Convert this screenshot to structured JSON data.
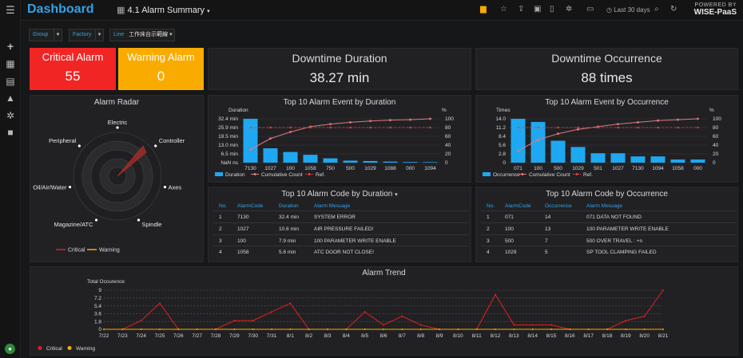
{
  "header": {
    "brand": "Dashboard",
    "dashboard_title": "4.1 Alarm Summary",
    "time_range": "Last 30 days",
    "powered_line1": "POWERED BY",
    "powered_line2": "WISE-PaaS"
  },
  "filters": [
    {
      "label": "Group"
    },
    {
      "label": "Factory"
    },
    {
      "label": "Line",
      "value": "工作床台示範線"
    }
  ],
  "stats": {
    "critical": {
      "label": "Critical Alarm",
      "value": "55",
      "color": "#f22525"
    },
    "warning": {
      "label": "Warning Alarm",
      "value": "0",
      "color": "#f9ab00"
    },
    "downtime_duration": {
      "label": "Downtime Duration",
      "value": "38.27 min"
    },
    "downtime_occurrence": {
      "label": "Downtime Occurrence",
      "value": "88 times"
    }
  },
  "radar": {
    "title": "Alarm Radar",
    "axes": [
      "Electric",
      "Controller",
      "Axes",
      "Spindle",
      "Magazine/ATC",
      "Oil/Air/Water",
      "Peripheral"
    ],
    "legend": [
      "Critical",
      "Warning"
    ]
  },
  "chart_data": [
    {
      "type": "bar",
      "title": "Top 10 Alarm Event by Duration",
      "ylabel": "Duration",
      "y2label": "%",
      "categories": [
        "7130",
        "1027",
        "100",
        "1058",
        "750",
        "500",
        "1029",
        "1088",
        "000",
        "1094"
      ],
      "y_ticks": [
        "NaN ns",
        "6.5 min",
        "13.0 min",
        "19.5 min",
        "25.9 min",
        "32.4 min"
      ],
      "y2_ticks": [
        "0",
        "20",
        "40",
        "60",
        "80",
        "100"
      ],
      "series": [
        {
          "name": "Duration",
          "values": [
            32.4,
            10.6,
            7.9,
            5.8,
            3.2,
            1.5,
            1.2,
            0.8,
            0.5,
            0.4
          ],
          "color": "#1ea8f2"
        },
        {
          "name": "Cumulative Count",
          "values": [
            30,
            55,
            70,
            82,
            88,
            92,
            95,
            97,
            98,
            100
          ],
          "color": "#e07b7b"
        },
        {
          "name": "Ref.",
          "values": [
            80,
            80,
            80,
            80,
            80,
            80,
            80,
            80,
            80,
            80
          ],
          "color": "#e04040"
        }
      ],
      "ylim": [
        0,
        32.4
      ]
    },
    {
      "type": "bar",
      "title": "Top 10 Alarm Event by Occurrence",
      "ylabel": "Times",
      "y2label": "%",
      "categories": [
        "071",
        "100",
        "500",
        "1029",
        "501",
        "1027",
        "7130",
        "1094",
        "1058",
        "000"
      ],
      "y_ticks": [
        "0",
        "2.8",
        "5.6",
        "8.4",
        "11.2",
        "14.0"
      ],
      "y2_ticks": [
        "0",
        "20",
        "40",
        "60",
        "80",
        "100"
      ],
      "series": [
        {
          "name": "Occurrence",
          "values": [
            14,
            13,
            7,
            5,
            3,
            3,
            2,
            2,
            1,
            1
          ],
          "color": "#1ea8f2"
        },
        {
          "name": "Cumulative Count",
          "values": [
            27,
            52,
            66,
            76,
            82,
            88,
            92,
            96,
            98,
            100
          ],
          "color": "#e07b7b"
        },
        {
          "name": "Ref.",
          "values": [
            80,
            80,
            80,
            80,
            80,
            80,
            80,
            80,
            80,
            80
          ],
          "color": "#e04040"
        }
      ],
      "ylim": [
        0,
        14
      ]
    },
    {
      "type": "line",
      "title": "Alarm Trend",
      "ylabel": "Total Occurence",
      "x": [
        "7/22",
        "7/23",
        "7/24",
        "7/25",
        "7/26",
        "7/27",
        "7/28",
        "7/29",
        "7/30",
        "7/31",
        "8/1",
        "8/2",
        "8/3",
        "8/4",
        "8/5",
        "8/6",
        "8/7",
        "8/8",
        "8/9",
        "8/10",
        "8/11",
        "8/12",
        "8/13",
        "8/14",
        "8/15",
        "8/16",
        "8/17",
        "8/18",
        "8/19",
        "8/20",
        "8/21"
      ],
      "y_ticks": [
        "0",
        "1.8",
        "3.6",
        "5.4",
        "7.2",
        "9"
      ],
      "series": [
        {
          "name": "Critical",
          "values": [
            0,
            0,
            2,
            6,
            0,
            0,
            0,
            2,
            2,
            4,
            6,
            0,
            0,
            0,
            4,
            1,
            3,
            1,
            0,
            0,
            0,
            8,
            1,
            1,
            1,
            0,
            0,
            0,
            2,
            3,
            9
          ],
          "color": "#e02020"
        },
        {
          "name": "Warning",
          "values": [
            0,
            0,
            0,
            0,
            0,
            0,
            0,
            0,
            0,
            0,
            0,
            0,
            0,
            0,
            0,
            0,
            0,
            0,
            0,
            0,
            0,
            0,
            0,
            0,
            0,
            0,
            0,
            0,
            0,
            0,
            0
          ],
          "color": "#f9ab00"
        }
      ],
      "ylim": [
        0,
        9
      ]
    }
  ],
  "table_duration": {
    "title": "Top 10 Alarm Code by Duration",
    "headers": [
      "No.",
      "AlarmCode",
      "Duration",
      "Alarm Message"
    ],
    "rows": [
      [
        "1",
        "7130",
        "32.4 min",
        "SYSTEM ERROR"
      ],
      [
        "2",
        "1027",
        "10.6 min",
        "AIR PRESSURE FAILED!"
      ],
      [
        "3",
        "100",
        "7.9 min",
        "100 PARAMETER WRITE ENABLE"
      ],
      [
        "4",
        "1058",
        "5.8 min",
        "ATC DOOR NOT CLOSE!"
      ]
    ]
  },
  "table_occurrence": {
    "title": "Top 10 Alarm Code by Occurrence",
    "headers": [
      "No.",
      "AlarmCode",
      "Occurrence",
      "Alarm Message"
    ],
    "rows": [
      [
        "1",
        "071",
        "14",
        "071 DATA NOT FOUND"
      ],
      [
        "2",
        "100",
        "13",
        "100 PARAMETER WRITE ENABLE"
      ],
      [
        "3",
        "500",
        "7",
        "500 OVER TRAVEL : +n"
      ],
      [
        "4",
        "1029",
        "5",
        "SP TOOL CLAMPING FAILED"
      ]
    ]
  }
}
